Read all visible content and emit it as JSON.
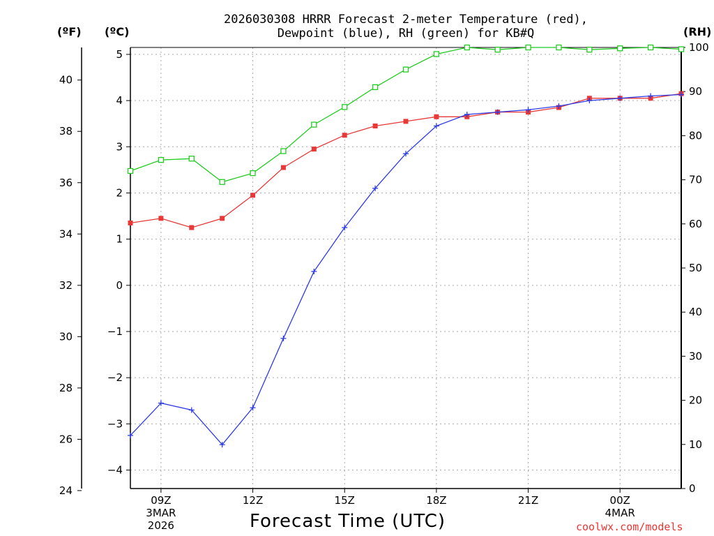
{
  "header": {
    "title_line1": "2026030308 HRRR Forecast 2-meter Temperature (red),",
    "title_line2": "Dewpoint (blue), RH (green) for KB#Q"
  },
  "units": {
    "f": "(ºF)",
    "c": "(ºC)",
    "rh": "(RH)"
  },
  "footer": {
    "xtitle": "Forecast Time (UTC)",
    "credit": "coolwx.com/models"
  },
  "colors": {
    "temp": "#e83838",
    "dew": "#2d3be6",
    "rh": "#22cc22",
    "grid": "#aaaaaa"
  },
  "chart_data": {
    "type": "line",
    "title": "2026030308 HRRR Forecast 2-meter Temperature (red), Dewpoint (blue), RH (green) for KB#Q",
    "xlabel": "Forecast Time (UTC)",
    "x_hours": [
      8,
      9,
      10,
      11,
      12,
      13,
      14,
      15,
      16,
      17,
      18,
      19,
      20,
      21,
      22,
      23,
      24,
      25,
      26
    ],
    "xlim": [
      8,
      26
    ],
    "x_ticks": [
      {
        "h": 9,
        "label": "09Z",
        "sub1": "3MAR",
        "sub2": "2026"
      },
      {
        "h": 12,
        "label": "12Z"
      },
      {
        "h": 15,
        "label": "15Z"
      },
      {
        "h": 18,
        "label": "18Z"
      },
      {
        "h": 21,
        "label": "21Z"
      },
      {
        "h": 24,
        "label": "00Z",
        "sub1": "4MAR"
      }
    ],
    "y_celsius": {
      "lim": [
        -4.4,
        5.15
      ],
      "ticks": [
        -4,
        -3,
        -2,
        -1,
        0,
        1,
        2,
        3,
        4,
        5
      ]
    },
    "y_fahrenheit": {
      "ticks": [
        24,
        26,
        28,
        30,
        32,
        34,
        36,
        38,
        40
      ]
    },
    "y_rh": {
      "lim": [
        0,
        100
      ],
      "ticks": [
        0,
        10,
        20,
        30,
        40,
        50,
        60,
        70,
        80,
        90,
        100
      ]
    },
    "series": [
      {
        "name": "Temperature",
        "unit": "C",
        "marker": "square-filled",
        "values": [
          1.35,
          1.45,
          1.25,
          1.45,
          1.95,
          2.55,
          2.95,
          3.25,
          3.45,
          3.55,
          3.65,
          3.65,
          3.75,
          3.75,
          3.85,
          4.05,
          4.05,
          4.05,
          4.15
        ]
      },
      {
        "name": "Dewpoint",
        "unit": "C",
        "marker": "plus",
        "values": [
          -3.25,
          -2.55,
          -2.7,
          -3.45,
          -2.65,
          -1.15,
          0.3,
          1.25,
          2.1,
          2.85,
          3.45,
          3.7,
          3.75,
          3.8,
          3.88,
          4.0,
          4.05,
          4.1,
          4.13
        ]
      },
      {
        "name": "RH",
        "unit": "%",
        "marker": "square-open",
        "values": [
          72,
          74.5,
          74.8,
          69.5,
          71.5,
          76.5,
          82.5,
          86.5,
          91,
          95,
          98.5,
          100,
          99.5,
          100,
          100,
          99.5,
          99.8,
          100,
          99.6
        ]
      }
    ]
  }
}
